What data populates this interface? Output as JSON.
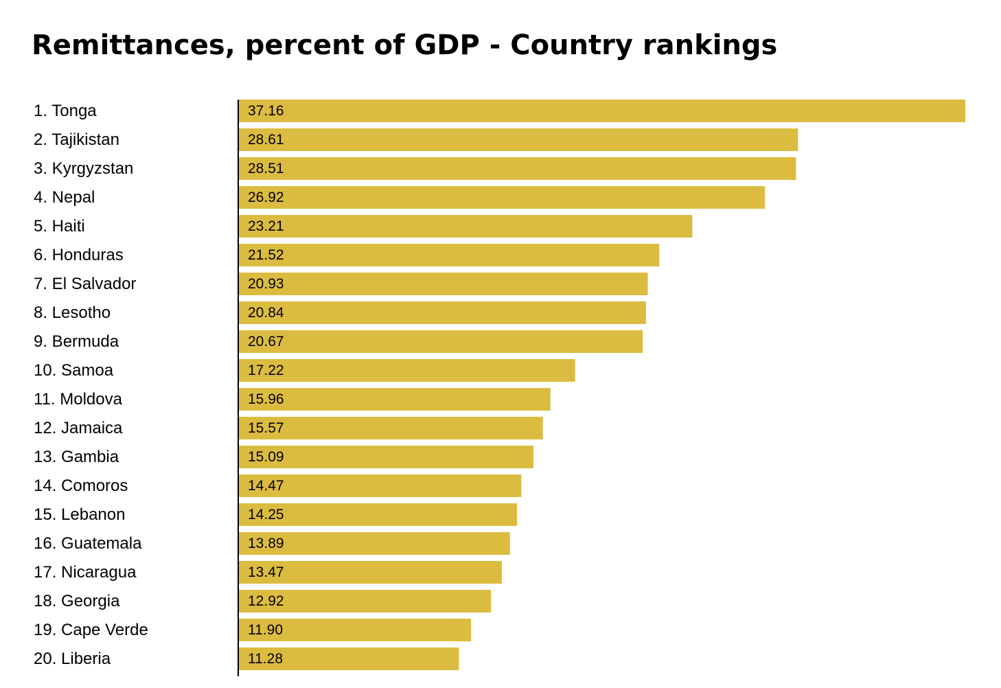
{
  "chart_data": {
    "type": "bar",
    "orientation": "horizontal",
    "title": "Remittances, percent of GDP - Country rankings",
    "categories": [
      "1. Tonga",
      "2. Tajikistan",
      "3. Kyrgyzstan",
      "4. Nepal",
      "5. Haiti",
      "6. Honduras",
      "7. El Salvador",
      "8. Lesotho",
      "9. Bermuda",
      "10. Samoa",
      "11. Moldova",
      "12. Jamaica",
      "13. Gambia",
      "14. Comoros",
      "15. Lebanon",
      "16. Guatemala",
      "17. Nicaragua",
      "18. Georgia",
      "19. Cape Verde",
      "20. Liberia"
    ],
    "values": [
      37.16,
      28.61,
      28.51,
      26.92,
      23.21,
      21.52,
      20.93,
      20.84,
      20.67,
      17.22,
      15.96,
      15.57,
      15.09,
      14.47,
      14.25,
      13.89,
      13.47,
      12.92,
      11.9,
      11.28
    ],
    "value_labels": [
      "37.16",
      "28.61",
      "28.51",
      "26.92",
      "23.21",
      "21.52",
      "20.93",
      "20.84",
      "20.67",
      "17.22",
      "15.96",
      "15.57",
      "15.09",
      "14.47",
      "14.25",
      "13.89",
      "13.47",
      "12.92",
      "11.90",
      "11.28"
    ],
    "bar_color": "#dcbc40",
    "axis_color": "#000000",
    "grid": false,
    "legend": "none",
    "xlabel": "",
    "ylabel": ""
  }
}
